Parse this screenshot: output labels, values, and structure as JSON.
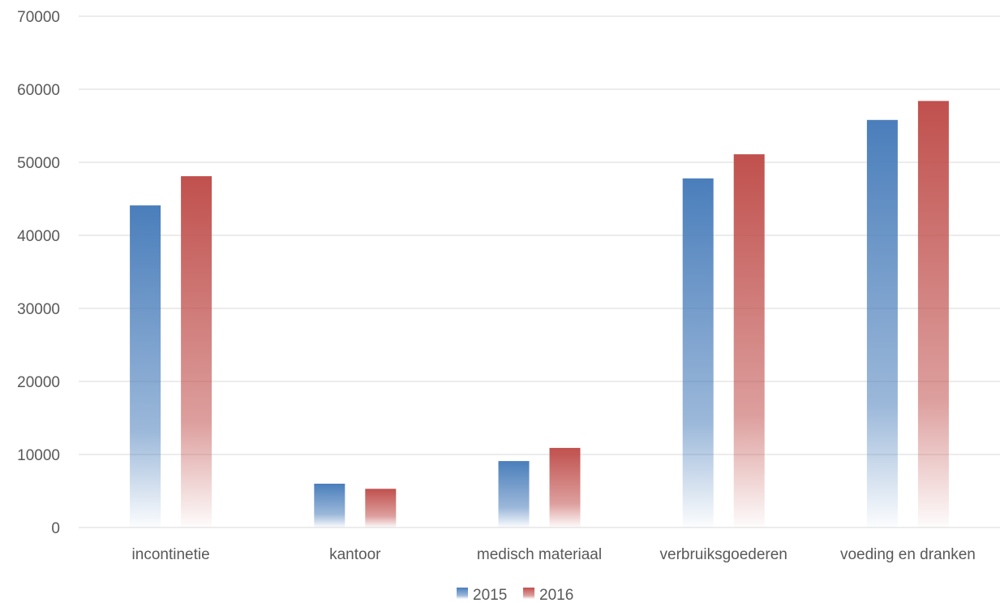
{
  "chart_data": {
    "type": "bar",
    "categories": [
      "incontinetie",
      "kantoor",
      "medisch materiaal",
      "verbruiksgoederen",
      "voeding en dranken"
    ],
    "series": [
      {
        "name": "2015",
        "values": [
          44100,
          6000,
          9100,
          47800,
          55800
        ],
        "color": "#4a7ebb"
      },
      {
        "name": "2016",
        "values": [
          48100,
          5300,
          10900,
          51100,
          58400
        ],
        "color": "#c0504d"
      }
    ],
    "yticks": [
      "0",
      "10000",
      "20000",
      "30000",
      "40000",
      "50000",
      "60000",
      "70000"
    ],
    "ylim": [
      0,
      70000
    ],
    "grid": true,
    "legend_position": "bottom",
    "fill_style": "vertical gradient fading to white at the base"
  }
}
